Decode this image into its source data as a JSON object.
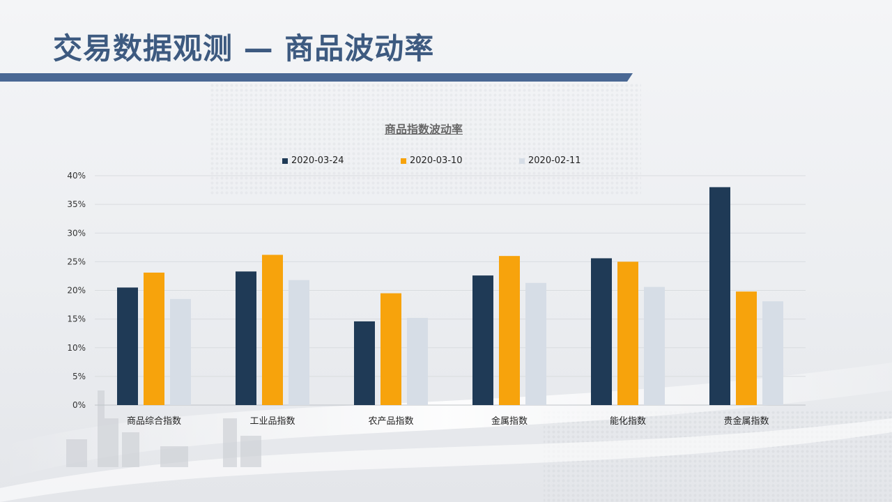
{
  "slide": {
    "title": "交易数据观测 — 商品波动率"
  },
  "colors": {
    "title": "#3d5a80",
    "band": "#4a6894",
    "series": [
      "#1f3a56",
      "#f7a30c",
      "#d6dde6"
    ]
  },
  "chart_data": {
    "type": "bar",
    "title": "商品指数波动率",
    "xlabel": "",
    "ylabel": "",
    "ylim": [
      0,
      40
    ],
    "ytick_step": 5,
    "ytick_labels": [
      "0%",
      "5%",
      "10%",
      "15%",
      "20%",
      "25%",
      "30%",
      "35%",
      "40%"
    ],
    "grid": true,
    "legend_position": "top",
    "categories": [
      "商品综合指数",
      "工业品指数",
      "农产品指数",
      "金属指数",
      "能化指数",
      "贵金属指数"
    ],
    "series": [
      {
        "name": "2020-03-24",
        "values": [
          20.5,
          23.3,
          14.6,
          22.6,
          25.6,
          38.0
        ]
      },
      {
        "name": "2020-03-10",
        "values": [
          23.1,
          26.2,
          19.5,
          26.0,
          25.0,
          19.8
        ]
      },
      {
        "name": "2020-02-11",
        "values": [
          18.5,
          21.8,
          15.2,
          21.3,
          20.6,
          18.1
        ]
      }
    ]
  }
}
